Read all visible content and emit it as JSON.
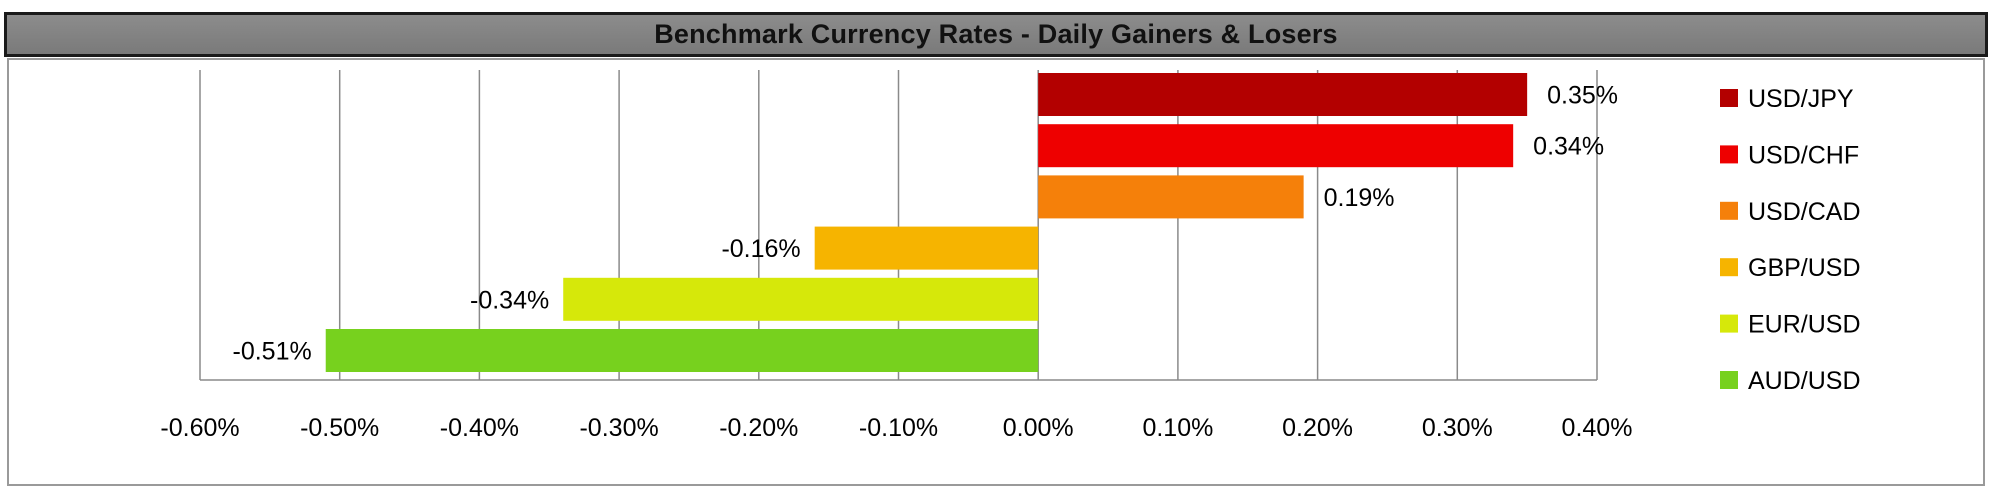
{
  "chart_data": {
    "type": "bar",
    "orientation": "horizontal",
    "title": "Benchmark Currency Rates - Daily Gainers & Losers",
    "categories": [
      "USD/JPY",
      "USD/CHF",
      "USD/CAD",
      "GBP/USD",
      "EUR/USD",
      "AUD/USD"
    ],
    "values": [
      0.35,
      0.34,
      0.19,
      -0.16,
      -0.34,
      -0.51
    ],
    "data_labels": [
      "0.35%",
      "0.34%",
      "0.19%",
      "-0.16%",
      "-0.34%",
      "-0.51%"
    ],
    "colors": [
      "#b30000",
      "#ee0000",
      "#f5800a",
      "#f6b400",
      "#d6e80a",
      "#77d11e"
    ],
    "xlim": [
      -0.6,
      0.4
    ],
    "x_ticks": [
      -0.6,
      -0.5,
      -0.4,
      -0.3,
      -0.2,
      -0.1,
      0.0,
      0.1,
      0.2,
      0.3,
      0.4
    ],
    "x_tick_labels": [
      "-0.60%",
      "-0.50%",
      "-0.40%",
      "-0.30%",
      "-0.20%",
      "-0.10%",
      "0.00%",
      "0.10%",
      "0.20%",
      "0.30%",
      "0.40%"
    ],
    "grid": "vertical",
    "legend": {
      "position": "right",
      "entries": [
        "USD/JPY",
        "USD/CHF",
        "USD/CAD",
        "GBP/USD",
        "EUR/USD",
        "AUD/USD"
      ]
    }
  }
}
